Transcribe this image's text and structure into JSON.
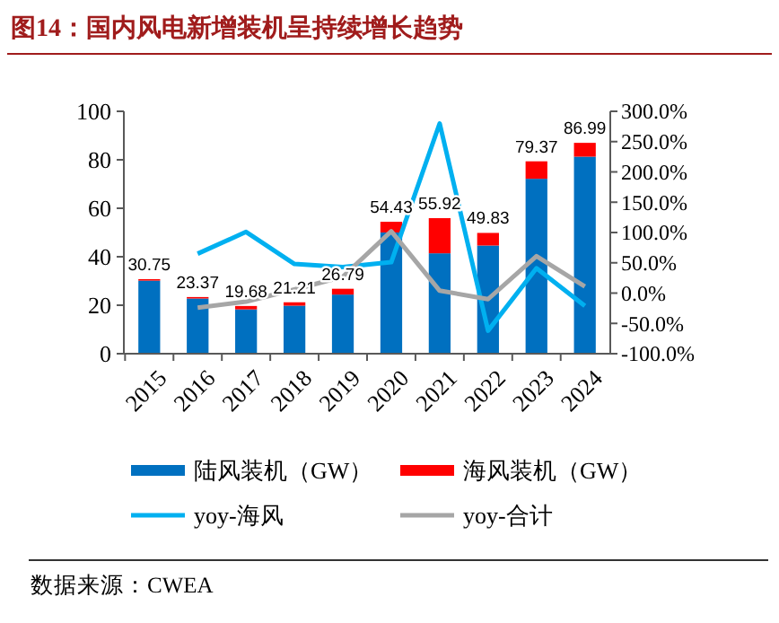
{
  "chart_data": {
    "type": "bar",
    "title": "图14：国内风电新增装机呈持续增长趋势",
    "categories": [
      "2015",
      "2016",
      "2017",
      "2018",
      "2019",
      "2020",
      "2021",
      "2022",
      "2023",
      "2024"
    ],
    "stacked": true,
    "series": [
      {
        "name": "陆风装机（GW）",
        "color": "#0070c0",
        "values": [
          30.15,
          22.77,
          18.28,
          19.81,
          24.39,
          50.03,
          41.42,
          44.63,
          72.17,
          81.29
        ]
      },
      {
        "name": "海风装机（GW）",
        "color": "#ff0000",
        "values": [
          0.6,
          0.6,
          1.4,
          1.4,
          2.4,
          4.4,
          14.5,
          5.2,
          7.2,
          5.7
        ]
      },
      {
        "name": "yoy-海风",
        "type": "line",
        "axis": "y2",
        "color": "#00b0f0",
        "values": [
          null,
          65,
          101,
          48,
          43,
          51,
          280,
          -62,
          41,
          -21
        ]
      },
      {
        "name": "yoy-合计",
        "type": "line",
        "axis": "y2",
        "color": "#a6a6a6",
        "values": [
          null,
          -24,
          -14,
          6,
          27,
          102,
          4,
          -10,
          61,
          11
        ]
      }
    ],
    "totals": [
      "30.75",
      "23.37",
      "19.68",
      "21.21",
      "26.79",
      "54.43",
      "55.92",
      "49.83",
      "79.37",
      "86.99"
    ],
    "ylim": [
      0,
      100
    ],
    "yticks": [
      0,
      20,
      40,
      60,
      80,
      100
    ],
    "y2lim": [
      -100,
      300
    ],
    "y2ticks": [
      {
        "value": -100,
        "label": "-100.0%"
      },
      {
        "value": -50,
        "label": "-50.0%"
      },
      {
        "value": 0,
        "label": "0.0%"
      },
      {
        "value": 50,
        "label": "50.0%"
      },
      {
        "value": 100,
        "label": "100.0%"
      },
      {
        "value": 150,
        "label": "150.0%"
      },
      {
        "value": 200,
        "label": "200.0%"
      },
      {
        "value": 250,
        "label": "250.0%"
      },
      {
        "value": 300,
        "label": "300.0%"
      }
    ],
    "grid": false,
    "legend": "bottom",
    "line_style": "solid",
    "marker": "none",
    "annotations": [
      "数据来源：CWEA"
    ]
  }
}
